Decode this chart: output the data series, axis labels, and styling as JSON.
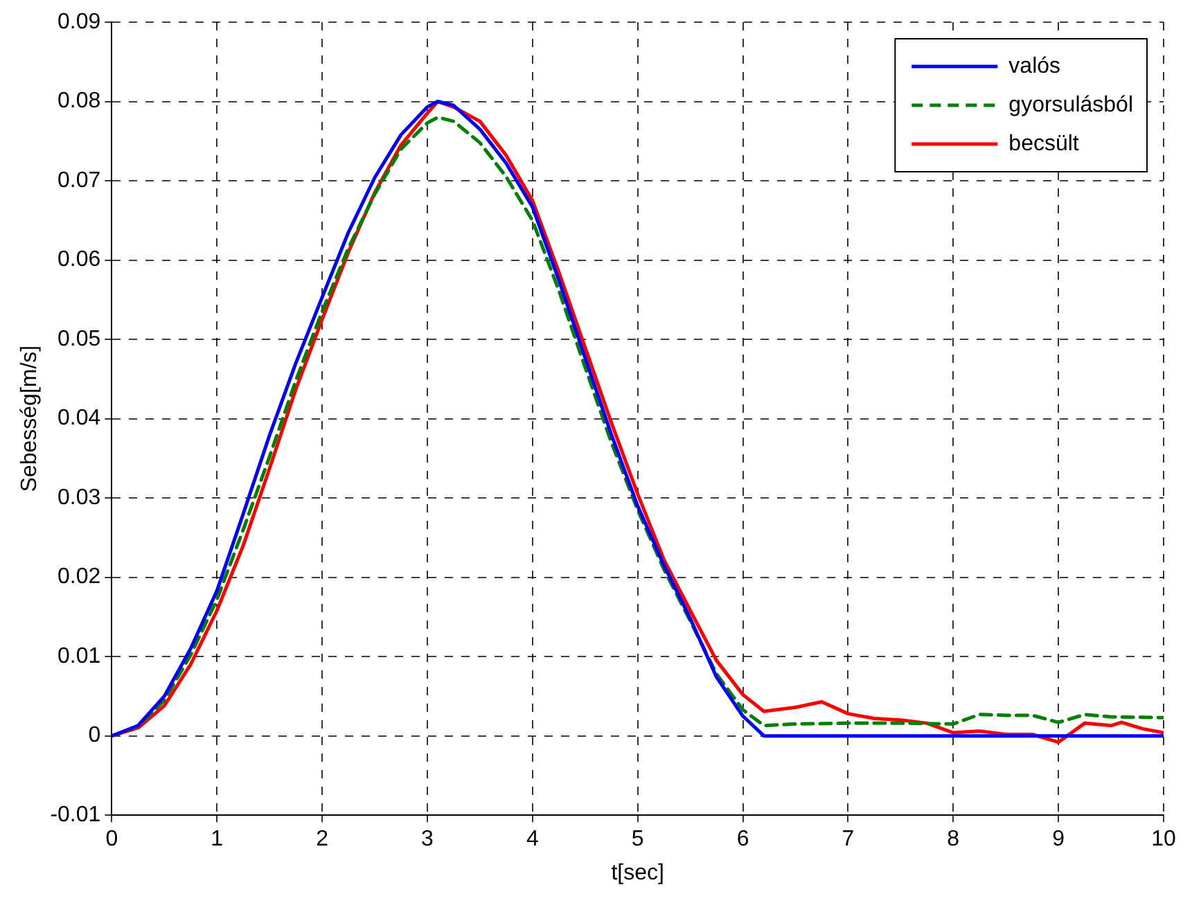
{
  "chart_data": {
    "type": "line",
    "xlabel": "t[sec]",
    "ylabel": "Sebesség[m/s]",
    "xlim": [
      0,
      10
    ],
    "ylim": [
      -0.01,
      0.09
    ],
    "xticks": [
      0,
      1,
      2,
      3,
      4,
      5,
      6,
      7,
      8,
      9,
      10
    ],
    "yticks": [
      -0.01,
      0,
      0.01,
      0.02,
      0.03,
      0.04,
      0.05,
      0.06,
      0.07,
      0.08,
      0.09
    ],
    "grid": true,
    "legend": "top right",
    "marker": "none",
    "series": [
      {
        "name": "valós",
        "color": "#0000ff",
        "line_style": "solid",
        "x": [
          0,
          0.25,
          0.5,
          0.75,
          1,
          1.25,
          1.5,
          1.75,
          2,
          2.25,
          2.5,
          2.75,
          3,
          3.1,
          3.25,
          3.5,
          3.75,
          4,
          4.25,
          4.5,
          4.75,
          5,
          5.25,
          5.5,
          5.75,
          6,
          6.2,
          10
        ],
        "values": [
          0,
          0.0013,
          0.005,
          0.011,
          0.0183,
          0.028,
          0.0379,
          0.047,
          0.0553,
          0.0635,
          0.0704,
          0.0758,
          0.0793,
          0.08,
          0.0795,
          0.0765,
          0.0722,
          0.0667,
          0.0575,
          0.0477,
          0.038,
          0.029,
          0.0215,
          0.0148,
          0.0074,
          0.0025,
          0,
          0
        ]
      },
      {
        "name": "gyorsulásból",
        "color": "#008000",
        "line_style": "dashed",
        "x": [
          0,
          0.25,
          0.5,
          0.75,
          1,
          1.25,
          1.5,
          1.75,
          2,
          2.25,
          2.5,
          2.75,
          3,
          3.1,
          3.25,
          3.5,
          3.75,
          4,
          4.25,
          4.5,
          4.75,
          5,
          5.25,
          5.5,
          5.75,
          6,
          6.2,
          6.5,
          7,
          7.5,
          8,
          8.25,
          8.5,
          8.75,
          9,
          9.25,
          9.5,
          10
        ],
        "values": [
          0,
          0.0012,
          0.0045,
          0.0102,
          0.0172,
          0.026,
          0.0352,
          0.0448,
          0.0535,
          0.0615,
          0.0683,
          0.074,
          0.0773,
          0.078,
          0.0775,
          0.0748,
          0.0705,
          0.065,
          0.0562,
          0.0465,
          0.037,
          0.0285,
          0.021,
          0.0145,
          0.0078,
          0.0033,
          0.0013,
          0.0015,
          0.0016,
          0.0016,
          0.0015,
          0.0027,
          0.0026,
          0.0026,
          0.0017,
          0.0027,
          0.0024,
          0.0023
        ]
      },
      {
        "name": "becsült",
        "color": "#ff0000",
        "line_style": "solid",
        "x": [
          0,
          0.25,
          0.5,
          0.75,
          1,
          1.25,
          1.5,
          1.75,
          2,
          2.25,
          2.5,
          2.75,
          3,
          3.1,
          3.25,
          3.5,
          3.75,
          4,
          4.25,
          4.5,
          4.75,
          5,
          5.25,
          5.5,
          5.75,
          6,
          6.2,
          6.5,
          6.75,
          7,
          7.25,
          7.5,
          7.75,
          8,
          8.25,
          8.5,
          8.75,
          9,
          9.25,
          9.5,
          9.6,
          9.8,
          10
        ],
        "values": [
          0,
          0.001,
          0.0038,
          0.009,
          0.0158,
          0.024,
          0.0337,
          0.0437,
          0.0525,
          0.061,
          0.0685,
          0.0745,
          0.0785,
          0.08,
          0.0793,
          0.0775,
          0.0732,
          0.0675,
          0.0585,
          0.049,
          0.0395,
          0.0305,
          0.0222,
          0.0158,
          0.0095,
          0.0052,
          0.0031,
          0.0036,
          0.0043,
          0.0028,
          0.0022,
          0.002,
          0.0016,
          0.0004,
          0.0006,
          0.0002,
          0.0002,
          -0.0008,
          0.0016,
          0.0013,
          0.0017,
          0.0009,
          0.0004
        ]
      }
    ]
  }
}
